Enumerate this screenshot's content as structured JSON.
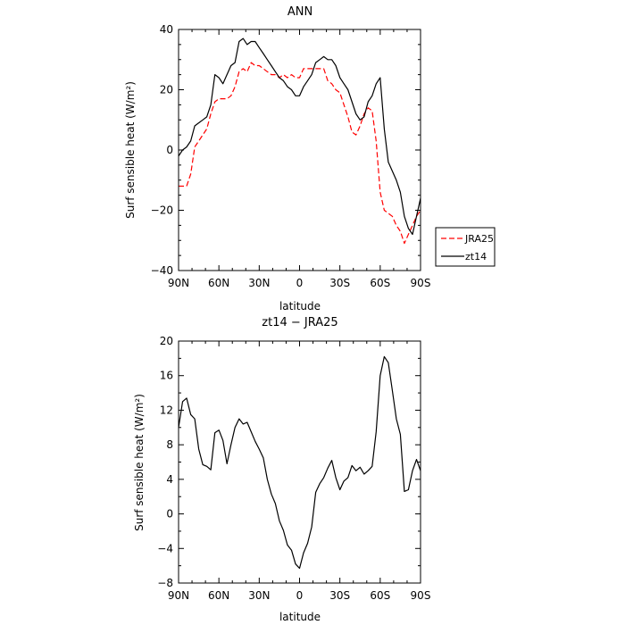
{
  "chart_data": [
    {
      "type": "line",
      "title": "ANN",
      "xlabel": "latitude",
      "ylabel": "Surf sensible heat (W/m²)",
      "xticks": [
        "90N",
        "60N",
        "30N",
        "0",
        "30S",
        "60S",
        "90S"
      ],
      "yticks": [
        "40",
        "20",
        "0",
        "−20",
        "−40"
      ],
      "xlim": [
        90,
        -90
      ],
      "ylim": [
        -40,
        40
      ],
      "legend_position": "right-middle",
      "series": [
        {
          "name": "JRA25",
          "color": "#ff0000",
          "dash": "dashed",
          "x": [
            90,
            87,
            84,
            81,
            78,
            75,
            72,
            69,
            66,
            63,
            60,
            57,
            54,
            51,
            48,
            45,
            42,
            39,
            36,
            33,
            30,
            27,
            24,
            21,
            18,
            15,
            12,
            9,
            6,
            3,
            0,
            -3,
            -6,
            -9,
            -12,
            -15,
            -18,
            -21,
            -24,
            -27,
            -30,
            -33,
            -36,
            -39,
            -42,
            -45,
            -48,
            -51,
            -54,
            -57,
            -60,
            -63,
            -66,
            -69,
            -72,
            -75,
            -78,
            -81,
            -84,
            -87,
            -90
          ],
          "y": [
            -12,
            -12,
            -12,
            -8,
            1,
            3,
            5,
            7,
            12,
            16,
            17,
            17,
            17,
            18,
            21,
            26,
            27,
            26,
            29,
            28,
            28,
            27,
            26,
            25,
            25,
            24,
            25,
            24,
            25,
            24,
            24,
            27,
            27,
            27,
            27,
            27,
            27,
            23,
            22,
            20,
            19,
            15,
            11,
            6,
            5,
            8,
            12,
            14,
            13,
            3,
            -14,
            -20,
            -21,
            -22,
            -25,
            -27,
            -31,
            -28,
            -25,
            -22,
            -20
          ]
        },
        {
          "name": "zt14",
          "color": "#000000",
          "dash": "solid",
          "x": [
            90,
            87,
            84,
            81,
            78,
            75,
            72,
            69,
            66,
            63,
            60,
            57,
            54,
            51,
            48,
            45,
            42,
            39,
            36,
            33,
            30,
            27,
            24,
            21,
            18,
            15,
            12,
            9,
            6,
            3,
            0,
            -3,
            -6,
            -9,
            -12,
            -15,
            -18,
            -21,
            -24,
            -27,
            -30,
            -33,
            -36,
            -39,
            -42,
            -45,
            -48,
            -51,
            -54,
            -57,
            -60,
            -63,
            -66,
            -69,
            -72,
            -75,
            -78,
            -81,
            -84,
            -87,
            -90
          ],
          "y": [
            -2,
            0,
            1,
            3,
            8,
            9,
            10,
            11,
            15,
            25,
            24,
            22,
            25,
            28,
            29,
            36,
            37,
            35,
            36,
            36,
            34,
            32,
            30,
            28,
            26,
            24,
            23,
            21,
            20,
            18,
            18,
            21,
            23,
            25,
            29,
            30,
            31,
            30,
            30,
            28,
            24,
            22,
            20,
            16,
            12,
            10,
            11,
            16,
            18,
            22,
            24,
            7,
            -4,
            -7,
            -10,
            -14,
            -22,
            -26,
            -28,
            -22,
            -16
          ]
        }
      ]
    },
    {
      "type": "line",
      "title": "zt14 − JRA25",
      "xlabel": "latitude",
      "ylabel": "Surf sensible heat (W/m²)",
      "xticks": [
        "90N",
        "60N",
        "30N",
        "0",
        "30S",
        "60S",
        "90S"
      ],
      "yticks": [
        "20",
        "16",
        "12",
        "8",
        "4",
        "0",
        "−4",
        "−8"
      ],
      "xlim": [
        90,
        -90
      ],
      "ylim": [
        -8,
        20
      ],
      "series": [
        {
          "color": "#000000",
          "dash": "solid",
          "x": [
            90,
            87,
            84,
            81,
            78,
            75,
            72,
            69,
            66,
            63,
            60,
            57,
            54,
            51,
            48,
            45,
            42,
            39,
            36,
            33,
            30,
            27,
            24,
            21,
            18,
            15,
            12,
            9,
            6,
            3,
            0,
            -3,
            -6,
            -9,
            -12,
            -15,
            -18,
            -21,
            -24,
            -27,
            -30,
            -33,
            -36,
            -39,
            -42,
            -45,
            -48,
            -51,
            -54,
            -57,
            -60,
            -63,
            -66,
            -69,
            -72,
            -75,
            -78,
            -81,
            -84,
            -87,
            -90
          ],
          "y": [
            10,
            13,
            13.4,
            11.5,
            11,
            7.5,
            5.7,
            5.5,
            5.1,
            9.4,
            9.7,
            8.5,
            5.8,
            8,
            10,
            11,
            10.4,
            10.6,
            9.5,
            8.4,
            7.5,
            6.5,
            4,
            2.3,
            1.2,
            -0.8,
            -1.9,
            -3.6,
            -4.2,
            -5.8,
            -6.3,
            -4.5,
            -3.4,
            -1.5,
            2.5,
            3.5,
            4.2,
            5.3,
            6.2,
            4.2,
            2.8,
            3.8,
            4.2,
            5.6,
            5,
            5.4,
            4.6,
            5,
            5.5,
            9.5,
            16,
            18.2,
            17.5,
            14.3,
            11,
            9.2,
            2.6,
            2.8,
            5,
            6.3,
            5
          ]
        }
      ]
    }
  ]
}
